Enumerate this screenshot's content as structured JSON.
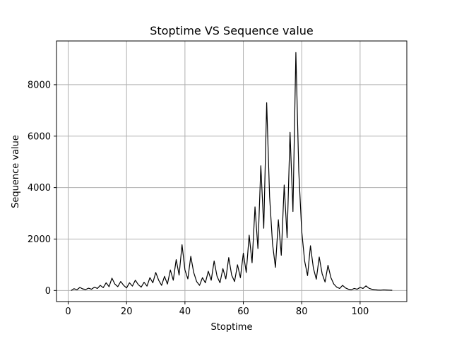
{
  "chart_data": {
    "type": "line",
    "title": "Stoptime VS Sequence value",
    "xlabel": "Stoptime",
    "ylabel": "Sequence value",
    "xlim": [
      -4,
      116
    ],
    "ylim": [
      -430,
      9700
    ],
    "xticks": [
      0,
      20,
      40,
      60,
      80,
      100
    ],
    "yticks": [
      0,
      2000,
      4000,
      6000,
      8000
    ],
    "grid": true,
    "line_color": "#000000",
    "series": [
      {
        "x": [
          1,
          2,
          3,
          4,
          5,
          6,
          7,
          8,
          9,
          10,
          11,
          12,
          13,
          14,
          15,
          16,
          17,
          18,
          19,
          20,
          21,
          22,
          23,
          24,
          25,
          26,
          27,
          28,
          29,
          30,
          31,
          32,
          33,
          34,
          35,
          36,
          37,
          38,
          39,
          40,
          41,
          42,
          43,
          44,
          45,
          46,
          47,
          48,
          49,
          50,
          51,
          52,
          53,
          54,
          55,
          56,
          57,
          58,
          59,
          60,
          61,
          62,
          63,
          64,
          65,
          66,
          67,
          68,
          69,
          70,
          71,
          72,
          73,
          74,
          75,
          76,
          77,
          78,
          79,
          80,
          81,
          82,
          83,
          84,
          85,
          86,
          87,
          88,
          89,
          90,
          91,
          92,
          93,
          94,
          95,
          96,
          97,
          98,
          99,
          100,
          101,
          102,
          103,
          104,
          105,
          106,
          107,
          108,
          109,
          110,
          111
        ],
        "y": [
          0,
          70,
          30,
          120,
          60,
          40,
          90,
          50,
          130,
          80,
          200,
          110,
          300,
          150,
          480,
          250,
          150,
          350,
          200,
          100,
          300,
          170,
          400,
          230,
          130,
          320,
          170,
          500,
          300,
          700,
          400,
          200,
          550,
          250,
          800,
          400,
          1200,
          600,
          1780,
          800,
          450,
          1330,
          700,
          350,
          200,
          500,
          300,
          750,
          400,
          1150,
          550,
          300,
          850,
          450,
          1280,
          600,
          350,
          1000,
          500,
          1450,
          700,
          2150,
          1080,
          3250,
          1630,
          4850,
          2420,
          7300,
          3650,
          1820,
          900,
          2750,
          1370,
          4100,
          2050,
          6150,
          3070,
          9250,
          4620,
          2310,
          1150,
          580,
          1740,
          870,
          440,
          1300,
          650,
          330,
          980,
          500,
          250,
          130,
          80,
          200,
          100,
          50,
          30,
          80,
          50,
          120,
          80,
          180,
          90,
          50,
          30,
          20,
          15,
          25,
          20,
          15,
          10
        ]
      }
    ]
  }
}
